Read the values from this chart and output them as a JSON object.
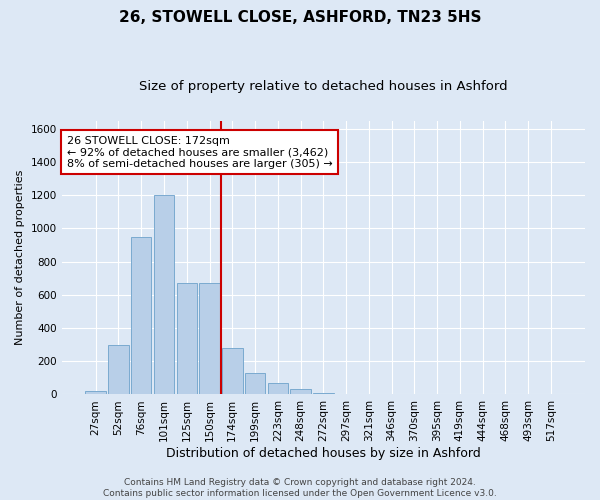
{
  "title": "26, STOWELL CLOSE, ASHFORD, TN23 5HS",
  "subtitle": "Size of property relative to detached houses in Ashford",
  "xlabel": "Distribution of detached houses by size in Ashford",
  "ylabel": "Number of detached properties",
  "bins": [
    "27sqm",
    "52sqm",
    "76sqm",
    "101sqm",
    "125sqm",
    "150sqm",
    "174sqm",
    "199sqm",
    "223sqm",
    "248sqm",
    "272sqm",
    "297sqm",
    "321sqm",
    "346sqm",
    "370sqm",
    "395sqm",
    "419sqm",
    "444sqm",
    "468sqm",
    "493sqm",
    "517sqm"
  ],
  "values": [
    20,
    300,
    950,
    1200,
    670,
    670,
    280,
    130,
    70,
    30,
    10,
    5,
    5,
    0,
    0,
    0,
    3,
    0,
    0,
    0,
    5
  ],
  "bar_color": "#b8cfe8",
  "bar_edge_color": "#7aaad0",
  "vline_pos": 5.5,
  "vline_color": "#cc0000",
  "annotation_text": "26 STOWELL CLOSE: 172sqm\n← 92% of detached houses are smaller (3,462)\n8% of semi-detached houses are larger (305) →",
  "annotation_box_facecolor": "#ffffff",
  "annotation_box_edgecolor": "#cc0000",
  "background_color": "#dde8f5",
  "ylim": [
    0,
    1650
  ],
  "yticks": [
    0,
    200,
    400,
    600,
    800,
    1000,
    1200,
    1400,
    1600
  ],
  "footnote": "Contains HM Land Registry data © Crown copyright and database right 2024.\nContains public sector information licensed under the Open Government Licence v3.0.",
  "title_fontsize": 11,
  "subtitle_fontsize": 9.5,
  "xlabel_fontsize": 9,
  "ylabel_fontsize": 8,
  "tick_fontsize": 7.5,
  "annotation_fontsize": 8,
  "footnote_fontsize": 6.5
}
